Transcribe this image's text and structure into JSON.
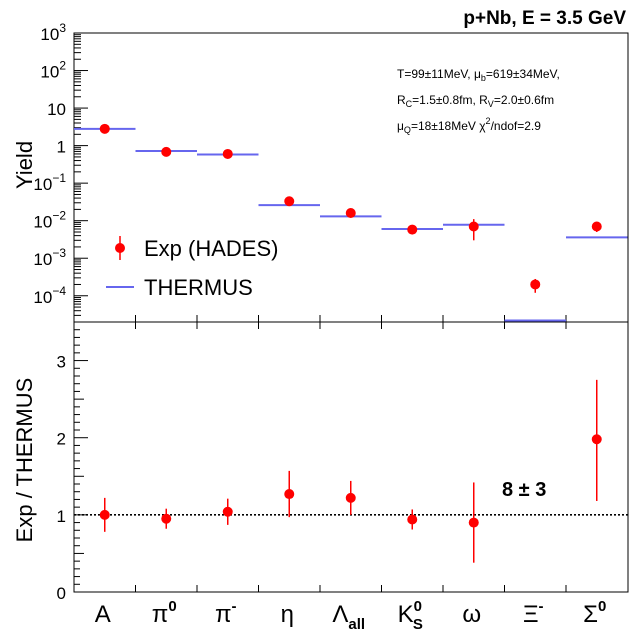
{
  "title": "p+Nb, E = 3.5 GeV",
  "chart_data": [
    {
      "type": "scatter",
      "ylabel": "Yield",
      "yscale": "log",
      "ylim": [
        2e-05,
        1000
      ],
      "yticks": [
        {
          "value": 1000,
          "label": "10",
          "sup": "3"
        },
        {
          "value": 100,
          "label": "10",
          "sup": "2"
        },
        {
          "value": 10,
          "label": "10",
          "sup": ""
        },
        {
          "value": 1,
          "label": "1",
          "sup": ""
        },
        {
          "value": 0.1,
          "label": "10",
          "sup": "−1"
        },
        {
          "value": 0.01,
          "label": "10",
          "sup": "−2"
        },
        {
          "value": 0.001,
          "label": "10",
          "sup": "−3"
        },
        {
          "value": 0.0001,
          "label": "10",
          "sup": "−4"
        }
      ],
      "categories": [
        "A",
        "π0",
        "π-",
        "η",
        "Λall",
        "KS0",
        "ω",
        "Ξ-",
        "Σ0"
      ],
      "series": [
        {
          "name": "Exp (HADES)",
          "color": "#ff0000",
          "values": [
            2.8,
            0.68,
            0.6,
            0.033,
            0.016,
            0.0058,
            0.007,
            0.0002,
            0.007
          ],
          "err_low": [
            0,
            0,
            0,
            0,
            0,
            0,
            0.004,
            8e-05,
            0.002
          ],
          "err_high": [
            0,
            0,
            0,
            0,
            0,
            0,
            0.004,
            8e-05,
            0.002
          ]
        },
        {
          "name": "THERMUS",
          "color": "#6666ee",
          "values": [
            2.8,
            0.72,
            0.58,
            0.026,
            0.013,
            0.006,
            0.0078,
            2.2e-05,
            0.0036
          ]
        }
      ],
      "annotations": {
        "line1": "T=99±11MeV, μ",
        "line1_sub": "b",
        "line1_rest": "=619±34MeV,",
        "line2_a": "R",
        "line2_a_sub": "C",
        "line2_b": "=1.5±0.8fm, R",
        "line2_b_sub": "V",
        "line2_c": "=2.0±0.6fm",
        "line3_a": "μ",
        "line3_a_sub": "Q",
        "line3_b": "=18±18MeV   χ",
        "line3_sup": "2",
        "line3_c": "/ndof=2.9"
      }
    },
    {
      "type": "scatter",
      "ylabel": "Exp / THERMUS",
      "ylim": [
        0,
        3.5
      ],
      "yticks": [
        0,
        1,
        2,
        3
      ],
      "reference_line": 1,
      "annotation": "8 ± 3",
      "categories": [
        "A",
        "π0",
        "π-",
        "η",
        "Λall",
        "KS0",
        "ω",
        "Ξ-",
        "Σ0"
      ],
      "values": [
        1.0,
        0.95,
        1.04,
        1.27,
        1.22,
        0.94,
        0.9,
        null,
        1.98
      ],
      "err_low": [
        0.22,
        0.13,
        0.17,
        0.3,
        0.22,
        0.13,
        0.52,
        null,
        0.8
      ],
      "err_high": [
        0.22,
        0.13,
        0.17,
        0.3,
        0.22,
        0.13,
        0.52,
        null,
        0.77
      ]
    }
  ],
  "x_labels": [
    {
      "main": "A",
      "sup": "",
      "sub": ""
    },
    {
      "main": "π",
      "sup": "0",
      "sub": ""
    },
    {
      "main": "π",
      "sup": "-",
      "sub": ""
    },
    {
      "main": "η",
      "sup": "",
      "sub": ""
    },
    {
      "main": "Λ",
      "sup": "",
      "sub": "all"
    },
    {
      "main": "K",
      "sup": "0",
      "sub": "S"
    },
    {
      "main": "ω",
      "sup": "",
      "sub": ""
    },
    {
      "main": "Ξ",
      "sup": "-",
      "sub": ""
    },
    {
      "main": "Σ",
      "sup": "0",
      "sub": ""
    }
  ]
}
